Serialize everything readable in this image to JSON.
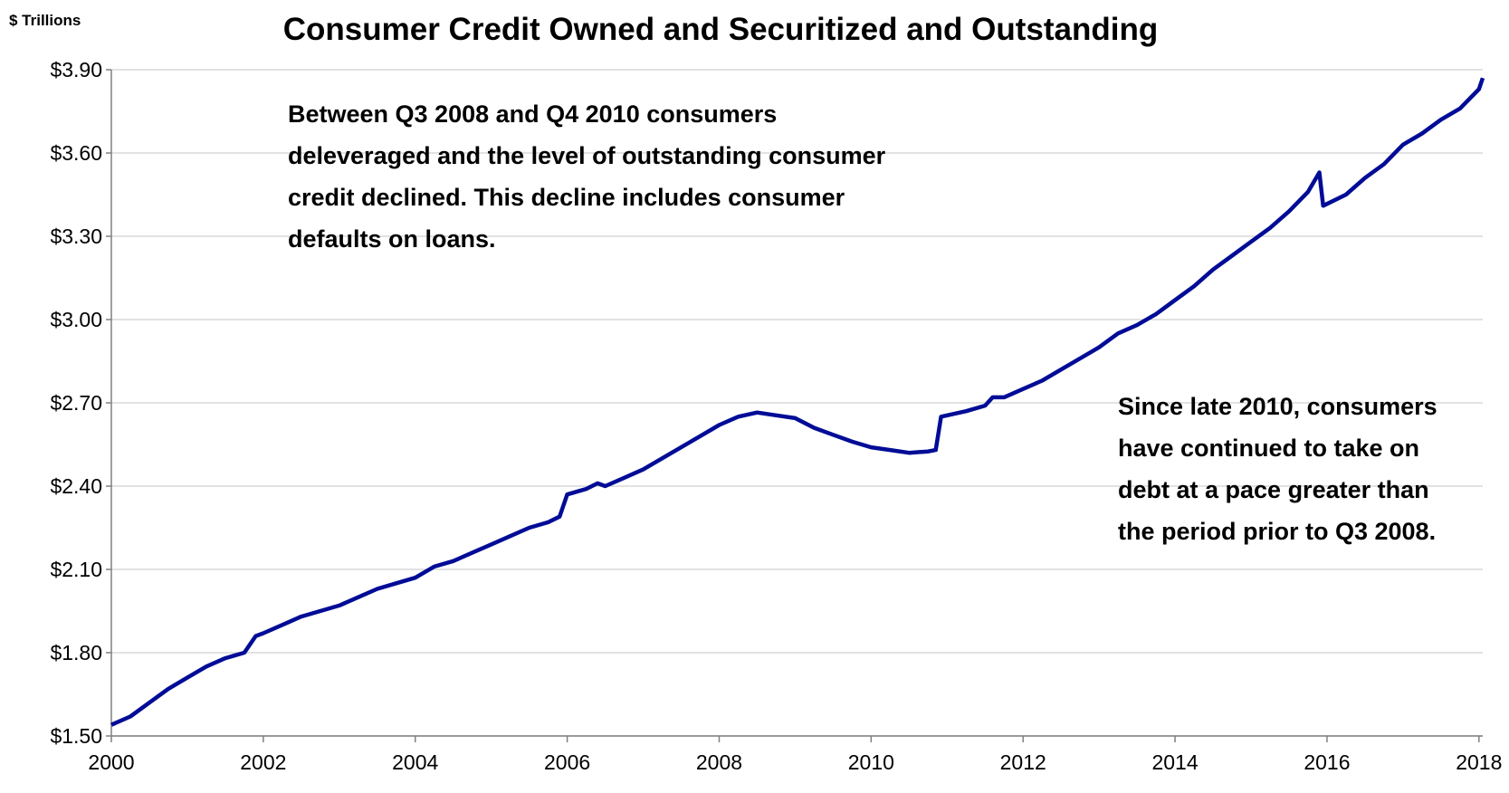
{
  "chart_data": {
    "type": "line",
    "title": "Consumer Credit Owned and Securitized and Outstanding",
    "y_label": "$ Trillions",
    "annotations": [
      [
        "Between Q3 2008 and Q4 2010 consumers",
        "deleveraged and the level of outstanding consumer",
        "credit declined. This decline includes consumer",
        "defaults on loans."
      ],
      [
        "Since late 2010, consumers",
        "have continued to take on",
        "debt at a pace greater than",
        "the period prior to Q3 2008."
      ]
    ],
    "grid": true,
    "xlim": [
      2000,
      2018.05
    ],
    "xticks": [
      2000,
      2002,
      2004,
      2006,
      2008,
      2010,
      2012,
      2014,
      2016,
      2018
    ],
    "ylim": [
      1.5,
      3.9
    ],
    "yticks": [
      {
        "value": 1.5,
        "label": "$1.50"
      },
      {
        "value": 1.8,
        "label": "$1.80"
      },
      {
        "value": 2.1,
        "label": "$2.10"
      },
      {
        "value": 2.4,
        "label": "$2.40"
      },
      {
        "value": 2.7,
        "label": "$2.70"
      },
      {
        "value": 3.0,
        "label": "$3.00"
      },
      {
        "value": 3.3,
        "label": "$3.30"
      },
      {
        "value": 3.6,
        "label": "$3.60"
      },
      {
        "value": 3.9,
        "label": "$3.90"
      }
    ],
    "x": [
      2000,
      2000.25,
      2000.5,
      2000.75,
      2001,
      2001.25,
      2001.5,
      2001.75,
      2001.9,
      2002,
      2002.25,
      2002.5,
      2002.75,
      2003,
      2003.25,
      2003.5,
      2003.75,
      2004,
      2004.25,
      2004.5,
      2004.75,
      2005,
      2005.25,
      2005.5,
      2005.75,
      2005.9,
      2006,
      2006.25,
      2006.4,
      2006.5,
      2006.75,
      2007,
      2007.25,
      2007.5,
      2007.75,
      2008,
      2008.25,
      2008.5,
      2008.75,
      2009,
      2009.25,
      2009.5,
      2009.75,
      2010,
      2010.25,
      2010.5,
      2010.75,
      2010.85,
      2010.92,
      2011.25,
      2011.5,
      2011.6,
      2011.75,
      2012,
      2012.25,
      2012.5,
      2012.75,
      2013,
      2013.25,
      2013.5,
      2013.75,
      2014,
      2014.25,
      2014.5,
      2014.75,
      2015,
      2015.25,
      2015.5,
      2015.75,
      2015.9,
      2015.95,
      2016.25,
      2016.5,
      2016.75,
      2017,
      2017.25,
      2017.5,
      2017.75,
      2018,
      2018.05
    ],
    "series": [
      {
        "color": "#000c96",
        "values": [
          1.54,
          1.57,
          1.62,
          1.67,
          1.71,
          1.75,
          1.78,
          1.8,
          1.86,
          1.87,
          1.9,
          1.93,
          1.95,
          1.97,
          2.0,
          2.03,
          2.05,
          2.07,
          2.11,
          2.13,
          2.16,
          2.19,
          2.22,
          2.25,
          2.27,
          2.29,
          2.37,
          2.39,
          2.41,
          2.4,
          2.43,
          2.46,
          2.5,
          2.54,
          2.58,
          2.62,
          2.65,
          2.665,
          2.655,
          2.645,
          2.61,
          2.585,
          2.56,
          2.54,
          2.53,
          2.52,
          2.525,
          2.53,
          2.65,
          2.67,
          2.69,
          2.72,
          2.72,
          2.75,
          2.78,
          2.82,
          2.86,
          2.9,
          2.95,
          2.98,
          3.02,
          3.07,
          3.12,
          3.18,
          3.23,
          3.28,
          3.33,
          3.39,
          3.46,
          3.53,
          3.41,
          3.45,
          3.51,
          3.56,
          3.63,
          3.67,
          3.72,
          3.76,
          3.83,
          3.87
        ]
      }
    ]
  }
}
